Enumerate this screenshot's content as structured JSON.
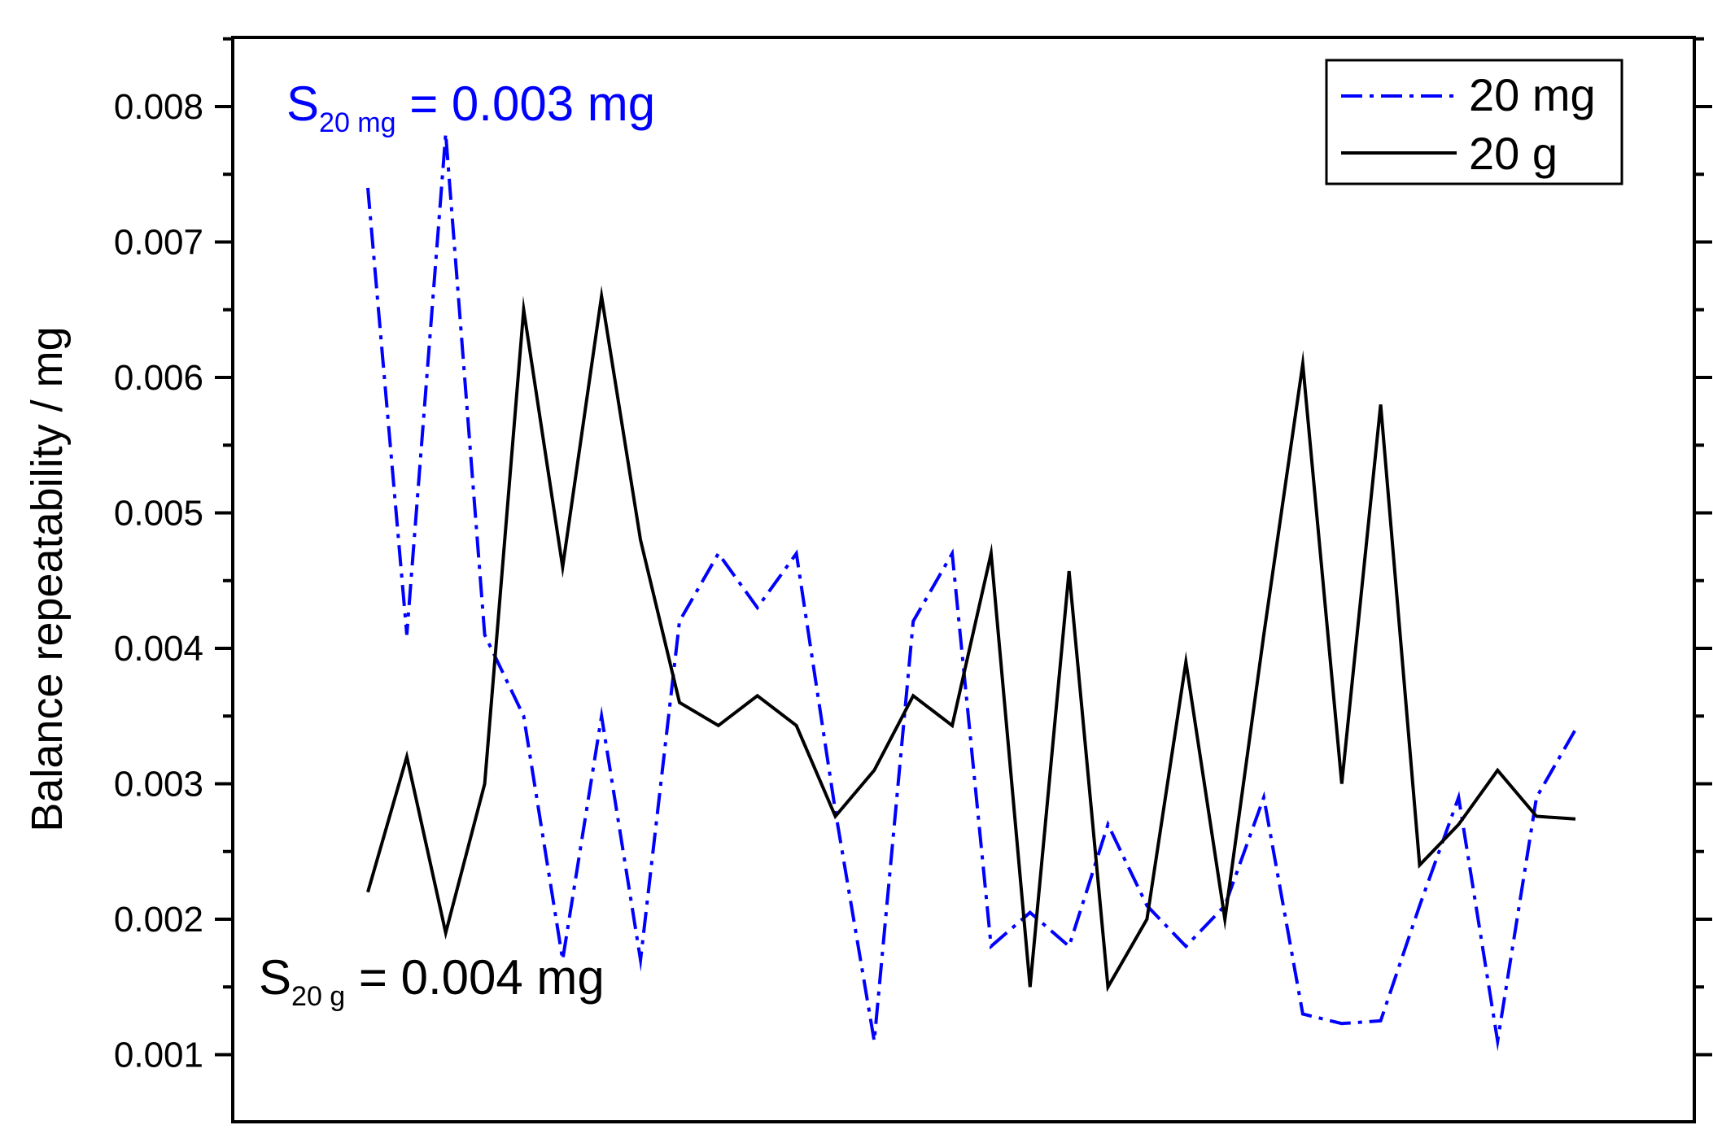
{
  "chart_data": {
    "type": "line",
    "ylabel": "Balance repeatability / mg",
    "xlabel": "",
    "ylim": [
      0.0,
      0.0085
    ],
    "y_ticks": [
      "0.001",
      "0.002",
      "0.003",
      "0.004",
      "0.005",
      "0.006",
      "0.007",
      "0.008"
    ],
    "x": [
      1,
      2,
      3,
      4,
      5,
      6,
      7,
      8,
      9,
      10,
      11,
      12,
      13,
      14,
      15,
      16,
      17,
      18,
      19,
      20,
      21,
      22,
      23,
      24,
      25,
      26,
      27,
      28,
      29,
      30,
      31,
      32
    ],
    "grid": false,
    "legend_position": "top-right",
    "series": [
      {
        "name": "20 mg",
        "color": "#0000ff",
        "line_style": "dash-dot",
        "values": [
          0.0074,
          0.0041,
          0.0078,
          0.0041,
          0.0035,
          0.0017,
          0.0035,
          0.0017,
          0.0042,
          0.0047,
          0.0043,
          0.0047,
          0.0028,
          0.0011,
          0.0042,
          0.0047,
          0.0018,
          0.00205,
          0.0018,
          0.0027,
          0.0021,
          0.0018,
          0.0021,
          0.0029,
          0.0013,
          0.00123,
          0.00125,
          0.0021,
          0.0029,
          0.0011,
          0.0029,
          0.0034
        ]
      },
      {
        "name": "20 g",
        "color": "#000000",
        "line_style": "solid",
        "values": [
          0.0022,
          0.0032,
          0.0019,
          0.003,
          0.0065,
          0.0046,
          0.0066,
          0.0048,
          0.0036,
          0.00343,
          0.00365,
          0.00343,
          0.00276,
          0.0031,
          0.00365,
          0.00343,
          0.0047,
          0.0015,
          0.00457,
          0.0015,
          0.002,
          0.0039,
          0.002,
          0.0041,
          0.0061,
          0.003,
          0.0058,
          0.0024,
          0.0027,
          0.0031,
          0.00276,
          0.00274
        ]
      }
    ],
    "annotations": [
      {
        "id": "s20mg",
        "main": "S",
        "sub": "20 mg",
        "rest": " = 0.003 mg",
        "color": "#0000ff"
      },
      {
        "id": "s20g",
        "main": "S",
        "sub": "20 g",
        "rest": " = 0.004 mg",
        "color": "#000000"
      }
    ]
  }
}
